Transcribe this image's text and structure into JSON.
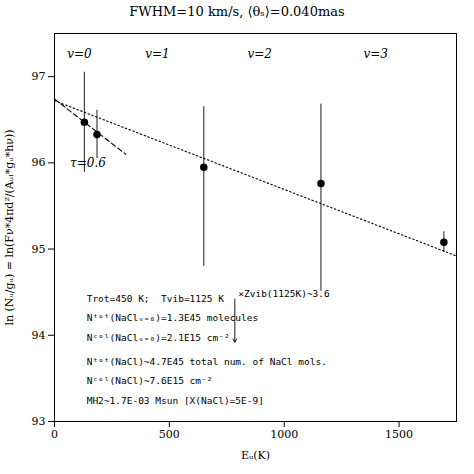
{
  "chart_data": {
    "type": "scatter",
    "title": "FWHM=10 km/s,  ⟨θₛ⟩=0.040mas",
    "x_label": "Eᵤ(K)",
    "y_label": "ln (Nᵤ/gᵤ) = ln(Fν*4πd²/(Aᵤₗ*gᵤ*hν))",
    "xlim": [
      0,
      1750
    ],
    "ylim": [
      93.0,
      97.5
    ],
    "xticks": [
      0,
      500,
      1000,
      1500
    ],
    "yticks": [
      93,
      94,
      95,
      96,
      97
    ],
    "grid": false,
    "color": "#000000",
    "marker": "circle",
    "x": [
      130,
      185,
      650,
      1160,
      1695
    ],
    "values": [
      96.47,
      96.33,
      95.95,
      95.76,
      95.08
    ],
    "yerr_lo": [
      0.58,
      0.28,
      1.15,
      1.25,
      0.12
    ],
    "yerr_hi": [
      0.58,
      0.28,
      0.7,
      0.92,
      0.12
    ],
    "lines": [
      {
        "x": [
          0,
          1750
        ],
        "y": [
          96.72,
          94.92
        ],
        "line_style": "dotted",
        "color": "#000000"
      },
      {
        "x": [
          0,
          310
        ],
        "y": [
          96.74,
          96.1
        ],
        "line_style": "dashed",
        "color": "#000000"
      }
    ],
    "annotations": [
      {
        "x": 55,
        "y": 97.32,
        "text": "v=0"
      },
      {
        "x": 395,
        "y": 97.32,
        "text": "v=1"
      },
      {
        "x": 840,
        "y": 97.32,
        "text": "v=2"
      },
      {
        "x": 1345,
        "y": 97.32,
        "text": "v=3"
      },
      {
        "x": 68,
        "y": 96.05,
        "text": "τ=0.6"
      }
    ],
    "text_blocks": [
      {
        "x": 140,
        "y": 94.55,
        "lines": [
          "Trot=450 K;  Tvib=1125 K",
          "Nᵗᵒᵗ(NaClᵥ₌₀)=1.3E45 molecules",
          "Nᶜᵒˡ(NaClᵥ₌₀)=2.1E15 cm⁻²"
        ]
      },
      {
        "x": 140,
        "y": 93.82,
        "lines": [
          "Nᵗᵒᵗ(NaCl)~4.7E45 total num. of NaCl mols.",
          "Nᶜᵒˡ(NaCl)~7.6E15 cm⁻²",
          "MH2~1.7E-03 Msun [X(NaCl)=5E-9]"
        ]
      }
    ],
    "arrows": [
      {
        "x": 785,
        "y_start": 94.42,
        "y_end": 93.92,
        "label": {
          "x": 800,
          "y": 94.52,
          "text": "×Zvib(1125K)~3.6"
        }
      }
    ]
  }
}
